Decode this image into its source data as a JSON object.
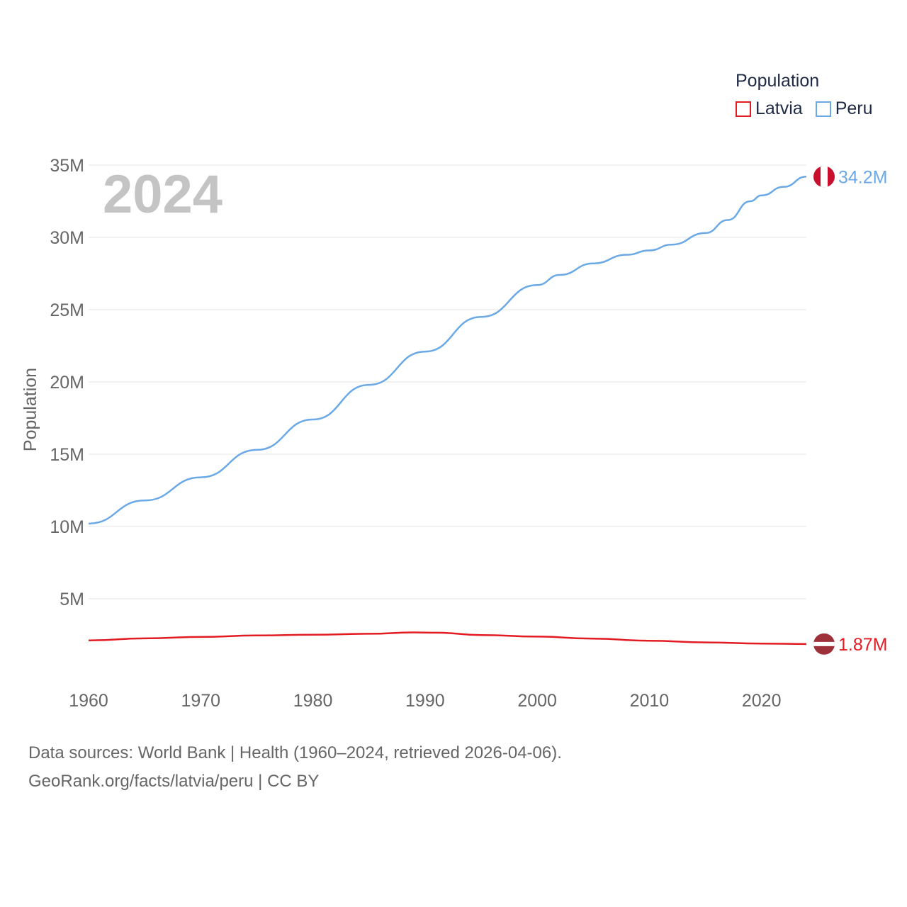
{
  "colors": {
    "latvia": "#e31b23",
    "peru": "#6aa9e6",
    "grid": "#e6e6e6",
    "tick_text": "#666666",
    "year_watermark": "#c4c4c4",
    "flag_red": "#c8102e",
    "latvia_flag_red": "#9e3039"
  },
  "chart_data": {
    "type": "line",
    "title": "",
    "year_label": "2024",
    "xlabel": "",
    "ylabel": "Population",
    "xlim": [
      1960,
      2024
    ],
    "ylim": [
      0,
      35000000
    ],
    "x_ticks": [
      1960,
      1970,
      1980,
      1990,
      2000,
      2010,
      2020
    ],
    "x_tick_labels": [
      "1960",
      "1970",
      "1980",
      "1990",
      "2000",
      "2010",
      "2020"
    ],
    "y_ticks": [
      5000000,
      10000000,
      15000000,
      20000000,
      25000000,
      30000000,
      35000000
    ],
    "y_tick_labels": [
      "5M",
      "10M",
      "15M",
      "20M",
      "25M",
      "30M",
      "35M"
    ],
    "grid": true,
    "legend": {
      "title": "Population",
      "placement": "top-right",
      "entries": [
        "Latvia",
        "Peru"
      ]
    },
    "series": [
      {
        "name": "Peru",
        "color": "#6aa9e6",
        "end_label": "34.2M",
        "flag_icon": "peru-flag-icon",
        "x": [
          1960,
          1965,
          1970,
          1975,
          1980,
          1985,
          1990,
          1995,
          2000,
          2002,
          2005,
          2008,
          2010,
          2012,
          2015,
          2017,
          2019,
          2020,
          2022,
          2024
        ],
        "values": [
          10200000,
          11800000,
          13400000,
          15300000,
          17400000,
          19800000,
          22100000,
          24500000,
          26700000,
          27400000,
          28200000,
          28800000,
          29100000,
          29500000,
          30300000,
          31200000,
          32500000,
          32900000,
          33500000,
          34200000
        ]
      },
      {
        "name": "Latvia",
        "color": "#e31b23",
        "end_label": "1.87M",
        "flag_icon": "latvia-flag-icon",
        "x": [
          1960,
          1965,
          1970,
          1975,
          1980,
          1985,
          1989,
          1991,
          1995,
          2000,
          2005,
          2010,
          2015,
          2020,
          2024
        ],
        "values": [
          2120000,
          2260000,
          2360000,
          2460000,
          2510000,
          2580000,
          2670000,
          2650000,
          2490000,
          2380000,
          2240000,
          2100000,
          1980000,
          1900000,
          1870000
        ]
      }
    ]
  },
  "footer": {
    "sources": "Data sources: World Bank | Health (1960–2024, retrieved 2026-04-06).",
    "attribution": "GeoRank.org/facts/latvia/peru | CC BY"
  }
}
